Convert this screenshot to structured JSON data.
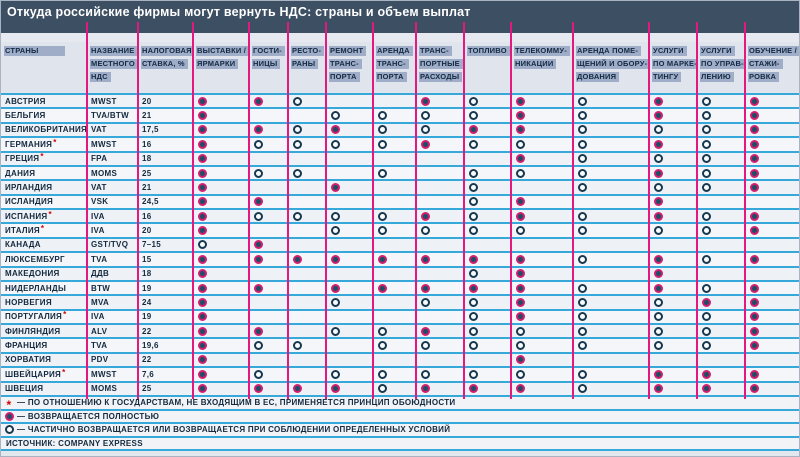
{
  "chart_data": {
    "type": "table",
    "title": "Откуда российские фирмы могут вернуть НДС: страны и объем выплат",
    "value_codes": {
      "F": "возвращается полностью",
      "P": "частично возвращается или при соблюдении условий",
      "": "не возвращается"
    },
    "columns": [
      {
        "lines": [
          "СТРАНЫ"
        ]
      },
      {
        "lines": [
          "НАЗВАНИЕ",
          "МЕСТНОГО",
          "НДС"
        ]
      },
      {
        "lines": [
          "НАЛОГОВАЯ",
          "СТАВКА, %"
        ]
      },
      {
        "lines": [
          "ВЫСТАВКИ /",
          "ЯРМАРКИ"
        ]
      },
      {
        "lines": [
          "ГОСТИ-",
          "НИЦЫ"
        ]
      },
      {
        "lines": [
          "РЕСТО-",
          "РАНЫ"
        ]
      },
      {
        "lines": [
          "РЕМОНТ",
          "ТРАНС-",
          "ПОРТА"
        ]
      },
      {
        "lines": [
          "АРЕНДА",
          "ТРАНС-",
          "ПОРТА"
        ]
      },
      {
        "lines": [
          "ТРАНС-",
          "ПОРТНЫЕ",
          "РАСХОДЫ"
        ]
      },
      {
        "lines": [
          "ТОПЛИВО"
        ]
      },
      {
        "lines": [
          "ТЕЛЕКОММУ-",
          "НИКАЦИИ"
        ]
      },
      {
        "lines": [
          "АРЕНДА ПОМЕ-",
          "ЩЕНИЙ И ОБОРУ-",
          "ДОВАНИЯ"
        ]
      },
      {
        "lines": [
          "УСЛУГИ",
          "ПО МАРКЕ-",
          "ТИНГУ"
        ]
      },
      {
        "lines": [
          "УСЛУГИ",
          "ПО УПРАВ-",
          "ЛЕНИЮ"
        ]
      },
      {
        "lines": [
          "ОБУЧЕНИЕ /",
          "СТАЖИ-",
          "РОВКА"
        ]
      }
    ],
    "rows": [
      {
        "country": "АВСТРИЯ",
        "note": false,
        "vat": "MWST",
        "rate": "20",
        "cells": [
          "F",
          "F",
          "P",
          "",
          "",
          "F",
          "P",
          "F",
          "P",
          "F",
          "P",
          "F"
        ]
      },
      {
        "country": "БЕЛЬГИЯ",
        "note": false,
        "vat": "TVA/BTW",
        "rate": "21",
        "cells": [
          "F",
          "",
          "",
          "P",
          "P",
          "P",
          "P",
          "F",
          "P",
          "F",
          "P",
          "F"
        ]
      },
      {
        "country": "ВЕЛИКОБРИТАНИЯ",
        "note": false,
        "vat": "VAT",
        "rate": "17,5",
        "cells": [
          "F",
          "F",
          "P",
          "F",
          "P",
          "P",
          "F",
          "F",
          "P",
          "P",
          "P",
          "F"
        ]
      },
      {
        "country": "ГЕРМАНИЯ",
        "note": true,
        "vat": "MWST",
        "rate": "16",
        "cells": [
          "F",
          "P",
          "P",
          "P",
          "P",
          "F",
          "P",
          "P",
          "P",
          "F",
          "P",
          "F"
        ]
      },
      {
        "country": "ГРЕЦИЯ",
        "note": true,
        "vat": "FPA",
        "rate": "18",
        "cells": [
          "F",
          "",
          "",
          "",
          "",
          "",
          "",
          "F",
          "P",
          "P",
          "P",
          "F"
        ]
      },
      {
        "country": "ДАНИЯ",
        "note": false,
        "vat": "MOMS",
        "rate": "25",
        "cells": [
          "F",
          "P",
          "P",
          "",
          "P",
          "",
          "P",
          "P",
          "P",
          "F",
          "P",
          "F"
        ]
      },
      {
        "country": "ИРЛАНДИЯ",
        "note": false,
        "vat": "VAT",
        "rate": "21",
        "cells": [
          "F",
          "",
          "",
          "F",
          "",
          "",
          "P",
          "",
          "P",
          "P",
          "P",
          "F"
        ]
      },
      {
        "country": "ИСЛАНДИЯ",
        "note": false,
        "vat": "VSK",
        "rate": "24,5",
        "cells": [
          "F",
          "F",
          "",
          "",
          "",
          "",
          "P",
          "F",
          "",
          "F",
          "",
          ""
        ]
      },
      {
        "country": "ИСПАНИЯ",
        "note": true,
        "vat": "IVA",
        "rate": "16",
        "cells": [
          "F",
          "P",
          "P",
          "P",
          "P",
          "F",
          "P",
          "F",
          "P",
          "F",
          "P",
          "F"
        ]
      },
      {
        "country": "ИТАЛИЯ",
        "note": true,
        "vat": "IVA",
        "rate": "20",
        "cells": [
          "F",
          "",
          "",
          "P",
          "P",
          "P",
          "P",
          "P",
          "P",
          "P",
          "P",
          "F"
        ]
      },
      {
        "country": "КАНАДА",
        "note": false,
        "vat": "GST/TVQ",
        "rate": "7–15",
        "cells": [
          "P",
          "F",
          "",
          "",
          "",
          "",
          "",
          "",
          "",
          "",
          "",
          ""
        ]
      },
      {
        "country": "ЛЮКСЕМБУРГ",
        "note": false,
        "vat": "TVA",
        "rate": "15",
        "cells": [
          "F",
          "F",
          "F",
          "F",
          "F",
          "F",
          "F",
          "F",
          "P",
          "F",
          "P",
          "F"
        ]
      },
      {
        "country": "МАКЕДОНИЯ",
        "note": false,
        "vat": "ДДВ",
        "rate": "18",
        "cells": [
          "F",
          "",
          "",
          "",
          "",
          "",
          "P",
          "F",
          "",
          "F",
          "",
          ""
        ]
      },
      {
        "country": "НИДЕРЛАНДЫ",
        "note": false,
        "vat": "BTW",
        "rate": "19",
        "cells": [
          "F",
          "F",
          "",
          "F",
          "F",
          "F",
          "F",
          "F",
          "P",
          "F",
          "P",
          "F"
        ]
      },
      {
        "country": "НОРВЕГИЯ",
        "note": false,
        "vat": "MVA",
        "rate": "24",
        "cells": [
          "F",
          "",
          "",
          "P",
          "",
          "P",
          "P",
          "F",
          "P",
          "P",
          "F",
          "F"
        ]
      },
      {
        "country": "ПОРТУГАЛИЯ",
        "note": true,
        "vat": "IVA",
        "rate": "19",
        "cells": [
          "F",
          "",
          "",
          "",
          "",
          "",
          "P",
          "F",
          "P",
          "P",
          "P",
          "F"
        ]
      },
      {
        "country": "ФИНЛЯНДИЯ",
        "note": false,
        "vat": "ALV",
        "rate": "22",
        "cells": [
          "F",
          "F",
          "",
          "P",
          "P",
          "F",
          "P",
          "P",
          "P",
          "P",
          "P",
          "F"
        ]
      },
      {
        "country": "ФРАНЦИЯ",
        "note": false,
        "vat": "TVA",
        "rate": "19,6",
        "cells": [
          "F",
          "P",
          "P",
          "",
          "P",
          "P",
          "P",
          "P",
          "P",
          "P",
          "P",
          "F"
        ]
      },
      {
        "country": "ХОРВАТИЯ",
        "note": false,
        "vat": "PDV",
        "rate": "22",
        "cells": [
          "F",
          "",
          "",
          "",
          "",
          "",
          "",
          "F",
          "",
          "",
          "",
          ""
        ]
      },
      {
        "country": "ШВЕЙЦАРИЯ",
        "note": true,
        "vat": "MWST",
        "rate": "7,6",
        "cells": [
          "F",
          "P",
          "",
          "P",
          "P",
          "P",
          "P",
          "P",
          "P",
          "F",
          "F",
          "F"
        ]
      },
      {
        "country": "ШВЕЦИЯ",
        "note": false,
        "vat": "MOMS",
        "rate": "25",
        "cells": [
          "F",
          "F",
          "F",
          "F",
          "P",
          "F",
          "F",
          "F",
          "P",
          "F",
          "F",
          "F"
        ]
      }
    ],
    "legend": {
      "items": [
        {
          "marker": "asterisk",
          "text": "— ПО ОТНОШЕНИЮ К ГОСУДАРСТВАМ, НЕ ВХОДЯЩИМ В ЕС, ПРИМЕНЯЕТСЯ ПРИНЦИП ОБОЮДНОСТИ"
        },
        {
          "marker": "full",
          "text": "— ВОЗВРАЩАЕТСЯ ПОЛНОСТЬЮ"
        },
        {
          "marker": "partial",
          "text": "— ЧАСТИЧНО ВОЗВРАЩАЕТСЯ ИЛИ ВОЗВРАЩАЕТСЯ ПРИ СОБЛЮДЕНИИ ОПРЕДЕЛЕННЫХ УСЛОВИЙ"
        }
      ],
      "source": "ИСТОЧНИК: COMPANY EXPRESS"
    },
    "colors": {
      "title_bar": "#3d4f63",
      "column_line": "#e5187f",
      "row_line": "#36a9da",
      "full_dot_ring": "#cf1f6e",
      "full_dot_core": "#1d4e66",
      "partial_dot_ring": "#17384f",
      "header_chip": "#9fadc8",
      "asterisk": "#d40000"
    }
  }
}
